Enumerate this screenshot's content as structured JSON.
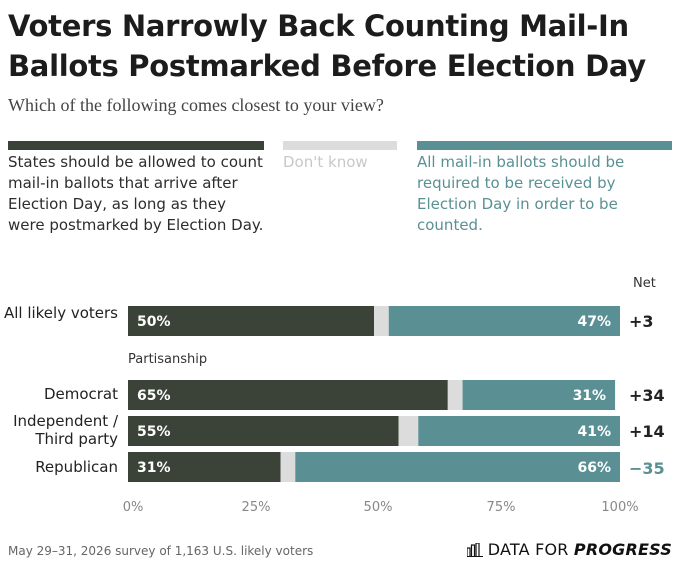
{
  "header": {
    "title": "Voters Narrowly Back Counting Mail-In Ballots Postmarked Before Election Day",
    "subtitle": "Which of the following comes closest to your view?"
  },
  "colors": {
    "postmarked": "#3b4238",
    "dont_know": "#dcdcdc",
    "received": "#5a9094",
    "net_positive": "#222222",
    "net_negative": "#5a9094"
  },
  "legend": [
    {
      "label": "States should be allowed to count mail-in ballots that arrive after Election Day, as long as they were postmarked by Election Day."
    },
    {
      "label": "Don't know"
    },
    {
      "label": "All mail-in ballots should be required to be received by Election Day in order to be counted."
    }
  ],
  "net_header": "Net",
  "section_label": "Partisanship",
  "footer": {
    "source": "May 29–31, 2026 survey of 1,163 U.S. likely voters",
    "logo_plain": "DATA FOR",
    "logo_bold": "PROGRESS"
  },
  "chart_data": {
    "type": "bar",
    "orientation": "horizontal",
    "stacked": true,
    "xlim": [
      0,
      100
    ],
    "x_ticks": [
      "0%",
      "25%",
      "50%",
      "75%",
      "100%"
    ],
    "grid": false,
    "legend_position": "top",
    "categories": [
      "All likely voters",
      "Democrat",
      "Independent / Third party",
      "Republican"
    ],
    "series": [
      {
        "values": [
          50,
          65,
          55,
          31
        ],
        "labels": [
          "50%",
          "65%",
          "55%",
          "31%"
        ]
      },
      {
        "values": [
          3,
          3,
          4,
          3
        ]
      },
      {
        "values": [
          47,
          31,
          41,
          66
        ],
        "labels": [
          "47%",
          "31%",
          "41%",
          "66%"
        ]
      }
    ],
    "net": [
      "+3",
      "+34",
      "+14",
      "−35"
    ]
  }
}
